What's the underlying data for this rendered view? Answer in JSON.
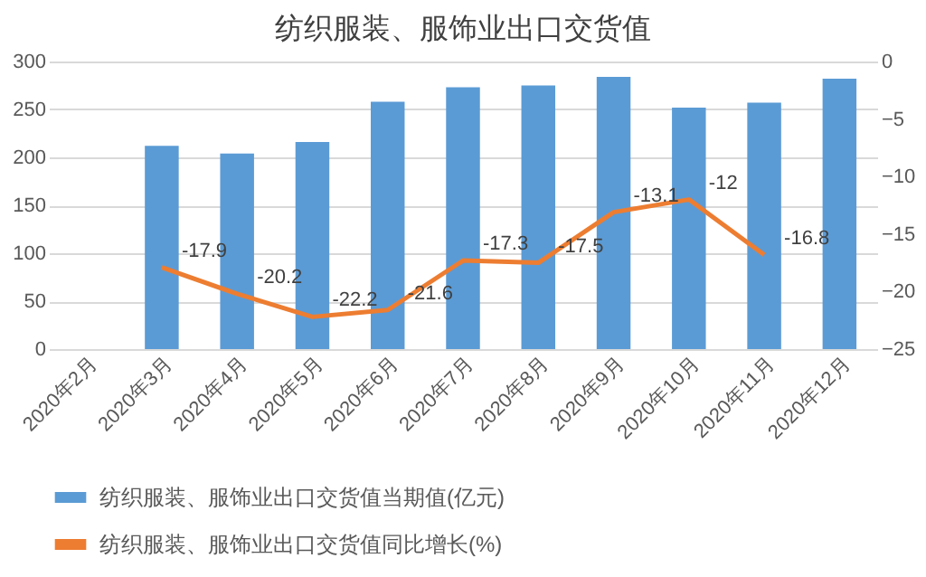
{
  "chart_data": {
    "type": "bar",
    "title": "纺织服装、服饰业出口交货值",
    "categories": [
      "2020年2月",
      "2020年3月",
      "2020年4月",
      "2020年5月",
      "2020年6月",
      "2020年7月",
      "2020年8月",
      "2020年9月",
      "2020年10月",
      "2020年11月",
      "2020年12月"
    ],
    "series": [
      {
        "name": "纺织服装、服饰业出口交货值当期值(亿元)",
        "color": "#5b9bd5",
        "values": [
          null,
          212,
          204,
          216,
          258,
          273,
          275,
          284,
          252,
          257,
          282
        ]
      },
      {
        "name": "纺织服装、服饰业出口交货值同比增长(%)",
        "type": "line",
        "axis": "y2",
        "color": "#ed7d31",
        "values": [
          null,
          -17.9,
          -20.2,
          -22.2,
          -21.6,
          -17.3,
          -17.5,
          -13.1,
          -12,
          -16.8,
          null
        ],
        "value_labels": [
          null,
          "-17.9",
          "-20.2",
          "-22.2",
          "-21.6",
          "-17.3",
          "-17.5",
          "-13.1",
          "-12",
          "-16.8",
          null
        ]
      }
    ],
    "ylim": [
      0,
      300
    ],
    "yticks": [
      0,
      50,
      100,
      150,
      200,
      250,
      300
    ],
    "y2lim": [
      -25,
      0
    ],
    "y2ticks": [
      -25,
      -20,
      -15,
      -10,
      -5,
      0
    ],
    "grid": "y",
    "legend": "bottom",
    "marker": "none",
    "line_style": "solid"
  }
}
